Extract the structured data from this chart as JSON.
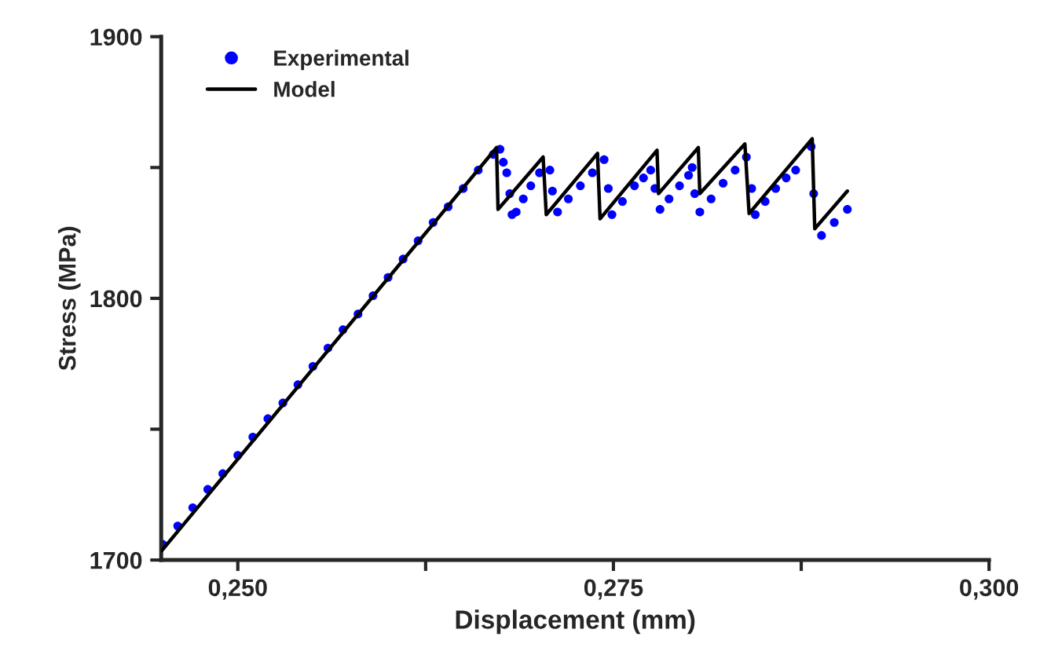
{
  "chart_data": {
    "type": "scatter",
    "xlabel": "Displacement (mm)",
    "ylabel": "Stress (MPa)",
    "xlim": [
      0.2449,
      0.3
    ],
    "ylim": [
      1700,
      1900
    ],
    "xticks": [
      {
        "value": 0.25,
        "label": "0,250"
      },
      {
        "value": 0.2625,
        "label": null
      },
      {
        "value": 0.275,
        "label": "0,275"
      },
      {
        "value": 0.2875,
        "label": null
      },
      {
        "value": 0.3,
        "label": "0,300"
      }
    ],
    "yticks": [
      1700,
      {
        "value": 1750,
        "label": null
      },
      1800,
      {
        "value": 1850,
        "label": null
      },
      1900
    ],
    "grid": false,
    "legend": "top left",
    "series": [
      {
        "name": "Experimental",
        "marker": "circle",
        "color": "#0000ff",
        "x": [
          0.245,
          0.246,
          0.247,
          0.248,
          0.249,
          0.25,
          0.251,
          0.252,
          0.253,
          0.254,
          0.255,
          0.256,
          0.257,
          0.258,
          0.259,
          0.26,
          0.261,
          0.262,
          0.263,
          0.264,
          0.265,
          0.266,
          0.267,
          0.26745,
          0.26767,
          0.2679,
          0.2681,
          0.26825,
          0.26853,
          0.269,
          0.2695,
          0.27008,
          0.27077,
          0.27094,
          0.27128,
          0.272,
          0.2728,
          0.2736,
          0.27438,
          0.27466,
          0.2749,
          0.2756,
          0.2764,
          0.277,
          0.27748,
          0.27776,
          0.2781,
          0.2787,
          0.2794,
          0.28,
          0.28024,
          0.28041,
          0.28075,
          0.2815,
          0.2823,
          0.2831,
          0.28385,
          0.2842,
          0.28444,
          0.2851,
          0.2858,
          0.2865,
          0.28713,
          0.28816,
          0.28833,
          0.28885,
          0.2897,
          0.29057
        ],
        "values": [
          1706,
          1713,
          1720,
          1727,
          1733,
          1740,
          1747,
          1754,
          1760,
          1767,
          1774,
          1781,
          1788,
          1794,
          1801,
          1808,
          1815,
          1822,
          1829,
          1835,
          1842,
          1849,
          1855,
          1857,
          1852,
          1848,
          1840,
          1832,
          1833,
          1838,
          1843,
          1848,
          1849,
          1841,
          1833,
          1838,
          1843,
          1848,
          1853,
          1842,
          1832,
          1837,
          1843,
          1846,
          1849,
          1842,
          1834,
          1838,
          1843,
          1847,
          1850,
          1840,
          1833,
          1838,
          1844,
          1849,
          1854,
          1842,
          1832,
          1837,
          1842,
          1846,
          1849,
          1858,
          1840,
          1824,
          1829,
          1834
        ]
      },
      {
        "name": "Model",
        "type": "line",
        "marker": "none",
        "line_style": "solid",
        "color": "#000000",
        "x": [
          0.24494,
          0.26722,
          0.26732,
          0.27032,
          0.27053,
          0.27394,
          0.27411,
          0.2779,
          0.278,
          0.28065,
          0.28075,
          0.28375,
          0.28403,
          0.28823,
          0.2884,
          0.29057
        ],
        "values": [
          1703.6,
          1857.6,
          1834,
          1854,
          1832,
          1855.4,
          1830.4,
          1856.6,
          1840,
          1857.6,
          1840,
          1859,
          1832.4,
          1861,
          1826.6,
          1841
        ]
      }
    ]
  }
}
